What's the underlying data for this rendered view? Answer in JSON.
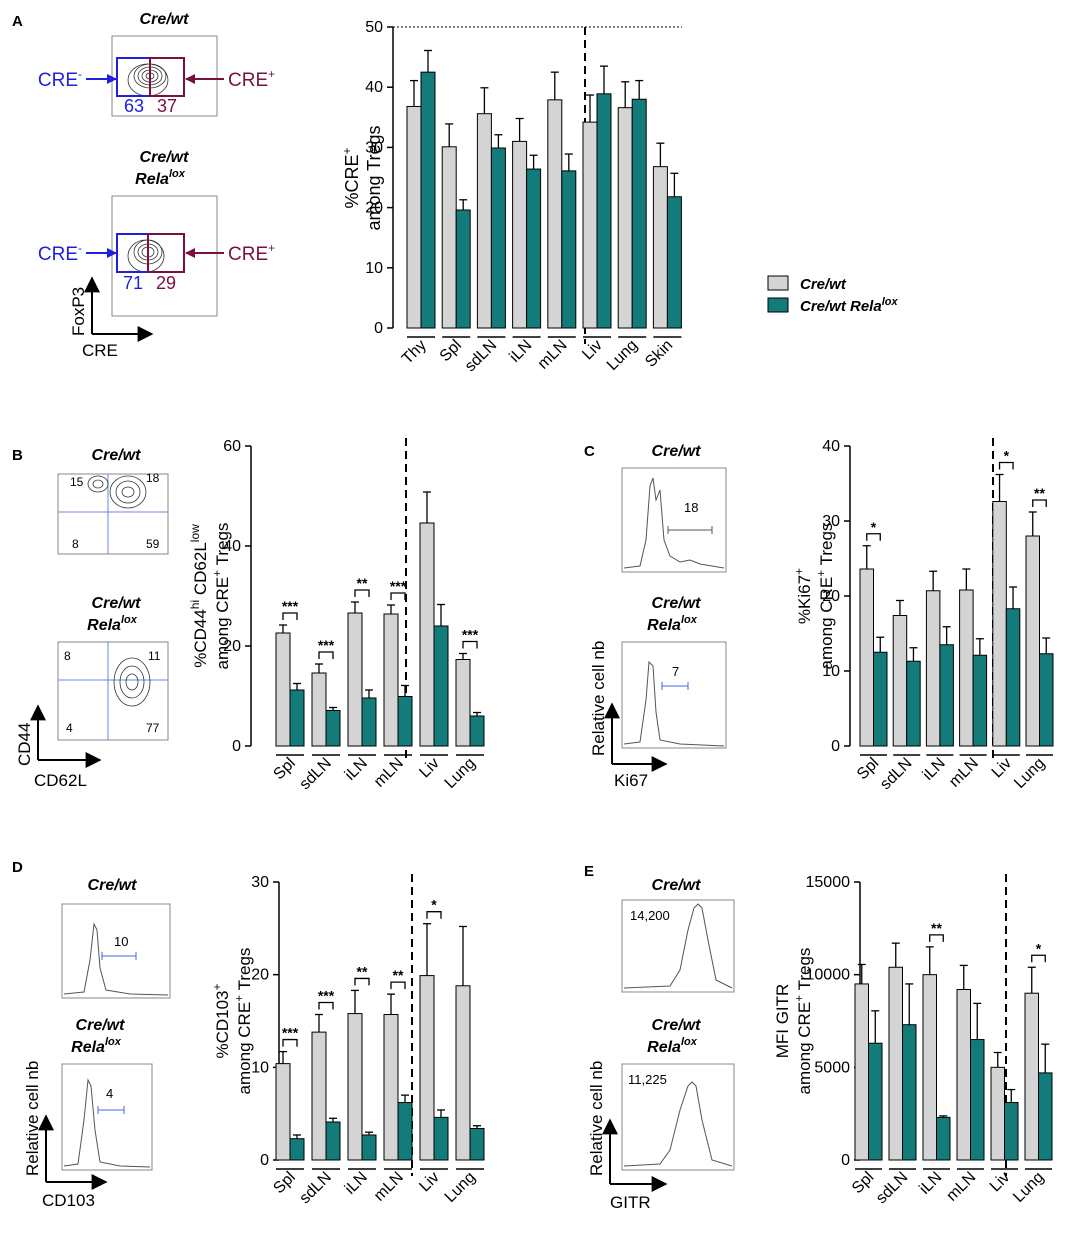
{
  "colors": {
    "wt": "#d4d4d4",
    "rela": "#147b7b",
    "cre_minus": "#1f1fe0",
    "cre_plus": "#7b1040",
    "gate": "#4a64e8"
  },
  "legend": {
    "wt": "Cre/wt",
    "rela_a": "Cre/wt Rela",
    "rela_sup": "lox"
  },
  "panelA": {
    "letter": "A",
    "plot1_title": "Cre/wt",
    "plot2_title_1": "Cre/wt",
    "plot2_title_2": "Rela",
    "plot2_title_sup": "lox",
    "cre_minus": "CRE",
    "cre_plus": "CRE",
    "minus_sign": "-",
    "plus_sign": "+",
    "plot1_minus_pct": "63",
    "plot1_plus_pct": "37",
    "plot2_minus_pct": "71",
    "plot2_plus_pct": "29",
    "yaxis": "FoxP3",
    "xaxis": "CRE"
  },
  "panelB": {
    "letter": "B",
    "plot1_title": "Cre/wt",
    "plot2_title_1": "Cre/wt",
    "plot2_title_2": "Rela",
    "plot2_title_sup": "lox",
    "q1": {
      "ul": "15",
      "ur": "18",
      "ll": "8",
      "lr": "59"
    },
    "q2": {
      "ul": "8",
      "ur": "11",
      "ll": "4",
      "lr": "77"
    },
    "yaxis": "CD44",
    "xaxis": "CD62L"
  },
  "panelC": {
    "letter": "C",
    "plot1_title": "Cre/wt",
    "plot2_title_1": "Cre/wt",
    "plot2_title_2": "Rela",
    "plot2_title_sup": "lox",
    "gate1": "18",
    "gate2": "7",
    "yaxis": "Relative cell nb",
    "xaxis": "Ki67"
  },
  "panelD": {
    "letter": "D",
    "plot1_title": "Cre/wt",
    "plot2_title_1": "Cre/wt",
    "plot2_title_2": "Rela",
    "plot2_title_sup": "lox",
    "gate1": "10",
    "gate2": "4",
    "yaxis": "Relative cell nb",
    "xaxis": "CD103"
  },
  "panelE": {
    "letter": "E",
    "plot1_title": "Cre/wt",
    "plot2_title_1": "Cre/wt",
    "plot2_title_2": "Rela",
    "plot2_title_sup": "lox",
    "mfi1": "14,200",
    "mfi2": "11,225",
    "yaxis": "Relative cell nb",
    "xaxis": "GITR"
  },
  "chart_data": [
    {
      "id": "A",
      "type": "bar",
      "ylabel_1": "%CRE",
      "ylabel_1_sup": "+",
      "ylabel_2": "among Tregs",
      "ylim": [
        0,
        50
      ],
      "yticks": [
        0,
        10,
        20,
        30,
        40,
        50
      ],
      "categories": [
        "Thy",
        "Spl",
        "sdLN",
        "iLN",
        "mLN",
        "Liv",
        "Lung",
        "Skin"
      ],
      "series": [
        {
          "name": "Cre/wt",
          "values": [
            36.8,
            30.1,
            35.6,
            31.0,
            37.9,
            34.2,
            36.6,
            26.8
          ],
          "errors": [
            4.3,
            3.8,
            4.3,
            3.8,
            4.6,
            4.5,
            4.3,
            3.9
          ]
        },
        {
          "name": "Cre/wt Rela lox",
          "values": [
            42.5,
            19.6,
            29.9,
            26.4,
            26.1,
            38.9,
            38.0,
            21.8
          ],
          "errors": [
            3.6,
            1.7,
            2.2,
            2.3,
            2.8,
            4.6,
            3.1,
            3.9
          ]
        }
      ],
      "significance": [
        "",
        "",
        "",
        "",
        "",
        "",
        "",
        ""
      ],
      "divider_after_index": 4,
      "dotted_top": true
    },
    {
      "id": "B",
      "type": "bar",
      "ylabel_1": "%CD44",
      "ylabel_1_sup": "hi",
      "ylabel_mid": " CD62L",
      "ylabel_mid_sup": "low",
      "ylabel_2": "among CRE",
      "ylabel_2_sup": "+",
      "ylabel_2_tail": " Tregs",
      "ylim": [
        0,
        60
      ],
      "yticks": [
        0,
        20,
        40,
        60
      ],
      "categories": [
        "Spl",
        "sdLN",
        "iLN",
        "mLN",
        "Liv",
        "Lung"
      ],
      "series": [
        {
          "name": "Cre/wt",
          "values": [
            22.6,
            14.6,
            26.6,
            26.4,
            44.6,
            17.3
          ],
          "errors": [
            1.6,
            1.8,
            2.2,
            1.8,
            6.2,
            1.2
          ]
        },
        {
          "name": "Cre/wt Rela lox",
          "values": [
            11.2,
            7.1,
            9.6,
            9.9,
            24.0,
            6.0
          ],
          "errors": [
            1.3,
            0.6,
            1.6,
            2.2,
            4.3,
            0.7
          ]
        }
      ],
      "significance": [
        "***",
        "***",
        "**",
        "***",
        "",
        "***"
      ],
      "divider_after_index": 3
    },
    {
      "id": "C",
      "type": "bar",
      "ylabel_1": "%Ki67",
      "ylabel_1_sup": "+",
      "ylabel_2": "among CRE",
      "ylabel_2_sup": "+",
      "ylabel_2_tail": " Tregs",
      "ylim": [
        0,
        40
      ],
      "yticks": [
        0,
        10,
        20,
        30,
        40
      ],
      "categories": [
        "Spl",
        "sdLN",
        "iLN",
        "mLN",
        "Liv",
        "Lung"
      ],
      "series": [
        {
          "name": "Cre/wt",
          "values": [
            23.6,
            17.4,
            20.7,
            20.8,
            32.6,
            28.0
          ],
          "errors": [
            3.1,
            2.0,
            2.6,
            2.8,
            3.6,
            3.2
          ]
        },
        {
          "name": "Cre/wt Rela lox",
          "values": [
            12.5,
            11.3,
            13.5,
            12.1,
            18.3,
            12.3
          ],
          "errors": [
            2.0,
            1.8,
            2.4,
            2.2,
            2.9,
            2.1
          ]
        }
      ],
      "significance": [
        "*",
        "",
        "",
        "",
        "*",
        "**"
      ],
      "divider_after_index": 3
    },
    {
      "id": "D",
      "type": "bar",
      "ylabel_1": "%CD103",
      "ylabel_1_sup": "+",
      "ylabel_2": "among CRE",
      "ylabel_2_sup": "+",
      "ylabel_2_tail": " Tregs",
      "ylim": [
        0,
        30
      ],
      "yticks": [
        0,
        10,
        20,
        30
      ],
      "categories": [
        "Spl",
        "sdLN",
        "iLN",
        "mLN",
        "Liv",
        "Lung"
      ],
      "series": [
        {
          "name": "Cre/wt",
          "values": [
            10.4,
            13.8,
            15.8,
            15.7,
            19.9,
            18.8
          ],
          "errors": [
            1.3,
            1.9,
            2.5,
            2.2,
            5.6,
            6.4
          ]
        },
        {
          "name": "Cre/wt Rela lox",
          "values": [
            2.3,
            4.1,
            2.7,
            6.2,
            4.6,
            3.4
          ],
          "errors": [
            0.4,
            0.4,
            0.3,
            0.8,
            0.8,
            0.3
          ]
        }
      ],
      "significance": [
        "***",
        "***",
        "**",
        "**",
        "*",
        ""
      ],
      "divider_after_index": 3
    },
    {
      "id": "E",
      "type": "bar",
      "ylabel_1": "MFI GITR",
      "ylabel_2": "among CRE",
      "ylabel_2_sup": "+",
      "ylabel_2_tail": " Tregs",
      "ylim": [
        0,
        15000
      ],
      "yticks": [
        0,
        5000,
        10000,
        15000
      ],
      "categories": [
        "Spl",
        "sdLN",
        "iLN",
        "mLN",
        "Liv",
        "Lung"
      ],
      "series": [
        {
          "name": "Cre/wt",
          "values": [
            9500,
            10400,
            10000,
            9200,
            5000,
            9000
          ],
          "errors": [
            1050,
            1300,
            1500,
            1300,
            800,
            1400
          ]
        },
        {
          "name": "Cre/wt Rela lox",
          "values": [
            6300,
            7300,
            2300,
            6500,
            3100,
            4700
          ],
          "errors": [
            1750,
            2200,
            80,
            1950,
            700,
            1550
          ]
        }
      ],
      "significance": [
        "",
        "",
        "**",
        "",
        "",
        "*"
      ],
      "divider_after_index": 3
    }
  ]
}
